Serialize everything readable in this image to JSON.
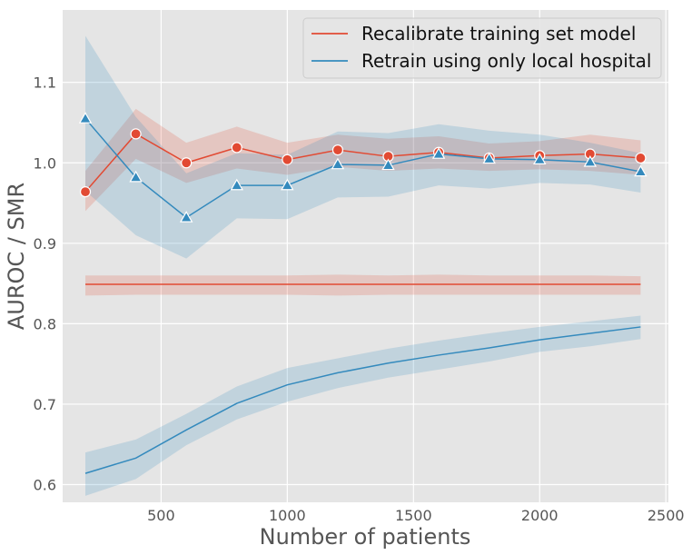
{
  "chart_data": {
    "type": "line",
    "xlabel": "Number of patients",
    "ylabel": "AUROC / SMR",
    "xlim": [
      110,
      2510
    ],
    "ylim": [
      0.578,
      1.19
    ],
    "xticks": [
      500,
      1000,
      1500,
      2000,
      2500
    ],
    "yticks": [
      0.6,
      0.7,
      0.8,
      0.9,
      1.0,
      1.1
    ],
    "grid": true,
    "legend_position": "top-right",
    "colors": {
      "red": "#e24a33",
      "blue": "#348abd",
      "background": "#e5e5e5",
      "grid": "#ffffff"
    },
    "legend": [
      {
        "label": "Recalibrate training set model",
        "color": "#e24a33"
      },
      {
        "label": "Retrain using only local hospital",
        "color": "#348abd"
      }
    ],
    "series": [
      {
        "metric": "SMR",
        "color": "#e24a33",
        "marker": "circle",
        "x": [
          200,
          400,
          600,
          800,
          1000,
          1200,
          1400,
          1600,
          1800,
          2000,
          2200,
          2400
        ],
        "y": [
          0.964,
          1.036,
          1.0,
          1.019,
          1.004,
          1.016,
          1.008,
          1.013,
          1.006,
          1.009,
          1.011,
          1.006
        ],
        "lower": [
          0.94,
          1.005,
          0.975,
          0.993,
          0.985,
          0.995,
          0.99,
          0.993,
          0.99,
          0.992,
          0.99,
          0.985
        ],
        "upper": [
          0.99,
          1.067,
          1.025,
          1.045,
          1.025,
          1.035,
          1.03,
          1.033,
          1.024,
          1.027,
          1.035,
          1.028
        ]
      },
      {
        "metric": "SMR",
        "color": "#348abd",
        "marker": "triangle",
        "x": [
          200,
          400,
          600,
          800,
          1000,
          1200,
          1400,
          1600,
          1800,
          2000,
          2200,
          2400
        ],
        "y": [
          1.055,
          0.982,
          0.932,
          0.972,
          0.972,
          0.998,
          0.997,
          1.011,
          1.005,
          1.004,
          1.001,
          0.989
        ],
        "lower": [
          0.965,
          0.91,
          0.881,
          0.931,
          0.93,
          0.957,
          0.958,
          0.972,
          0.968,
          0.975,
          0.973,
          0.963
        ],
        "upper": [
          1.158,
          1.057,
          0.987,
          1.012,
          1.01,
          1.039,
          1.037,
          1.048,
          1.04,
          1.035,
          1.025,
          1.012
        ]
      },
      {
        "metric": "AUROC",
        "color": "#e24a33",
        "marker": "none",
        "x": [
          200,
          400,
          600,
          800,
          1000,
          1200,
          1400,
          1600,
          1800,
          2000,
          2200,
          2400
        ],
        "y": [
          0.849,
          0.849,
          0.849,
          0.849,
          0.849,
          0.849,
          0.849,
          0.849,
          0.849,
          0.849,
          0.849,
          0.849
        ],
        "lower": [
          0.835,
          0.836,
          0.836,
          0.836,
          0.836,
          0.835,
          0.836,
          0.836,
          0.836,
          0.836,
          0.836,
          0.836
        ],
        "upper": [
          0.86,
          0.86,
          0.86,
          0.86,
          0.86,
          0.861,
          0.86,
          0.861,
          0.86,
          0.86,
          0.86,
          0.859
        ]
      },
      {
        "metric": "AUROC",
        "color": "#348abd",
        "marker": "none",
        "x": [
          200,
          400,
          600,
          800,
          1000,
          1200,
          1400,
          1600,
          1800,
          2000,
          2200,
          2400
        ],
        "y": [
          0.614,
          0.633,
          0.668,
          0.701,
          0.724,
          0.739,
          0.751,
          0.761,
          0.77,
          0.78,
          0.788,
          0.796
        ],
        "lower": [
          0.586,
          0.607,
          0.649,
          0.681,
          0.703,
          0.72,
          0.733,
          0.743,
          0.753,
          0.765,
          0.772,
          0.781
        ],
        "upper": [
          0.64,
          0.656,
          0.688,
          0.722,
          0.745,
          0.757,
          0.769,
          0.779,
          0.788,
          0.796,
          0.803,
          0.81
        ]
      }
    ]
  }
}
